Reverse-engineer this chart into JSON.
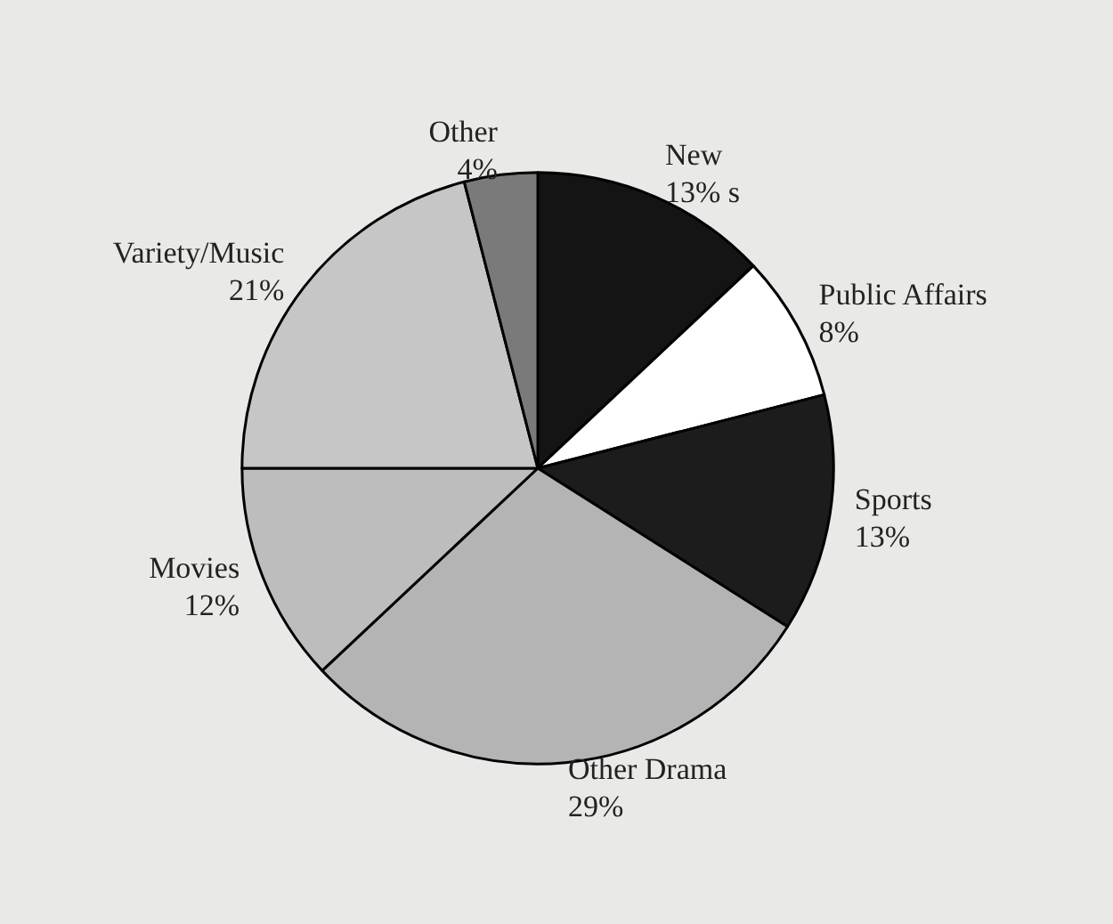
{
  "chart_data": {
    "type": "pie",
    "categories": [
      "New",
      "Public Affairs",
      "Sports",
      "Other Drama",
      "Movies",
      "Variety/Music",
      "Other"
    ],
    "values": [
      13,
      8,
      13,
      29,
      12,
      21,
      4
    ],
    "value_labels": [
      "13% s",
      "8%",
      "13%",
      "29%",
      "12%",
      "21%",
      "4%"
    ],
    "colors": [
      "#141414",
      "#ffffff",
      "#1c1c1c",
      "#b4b4b4",
      "#bdbdbd",
      "#c6c6c6",
      "#7a7a7a"
    ],
    "legend": false
  }
}
